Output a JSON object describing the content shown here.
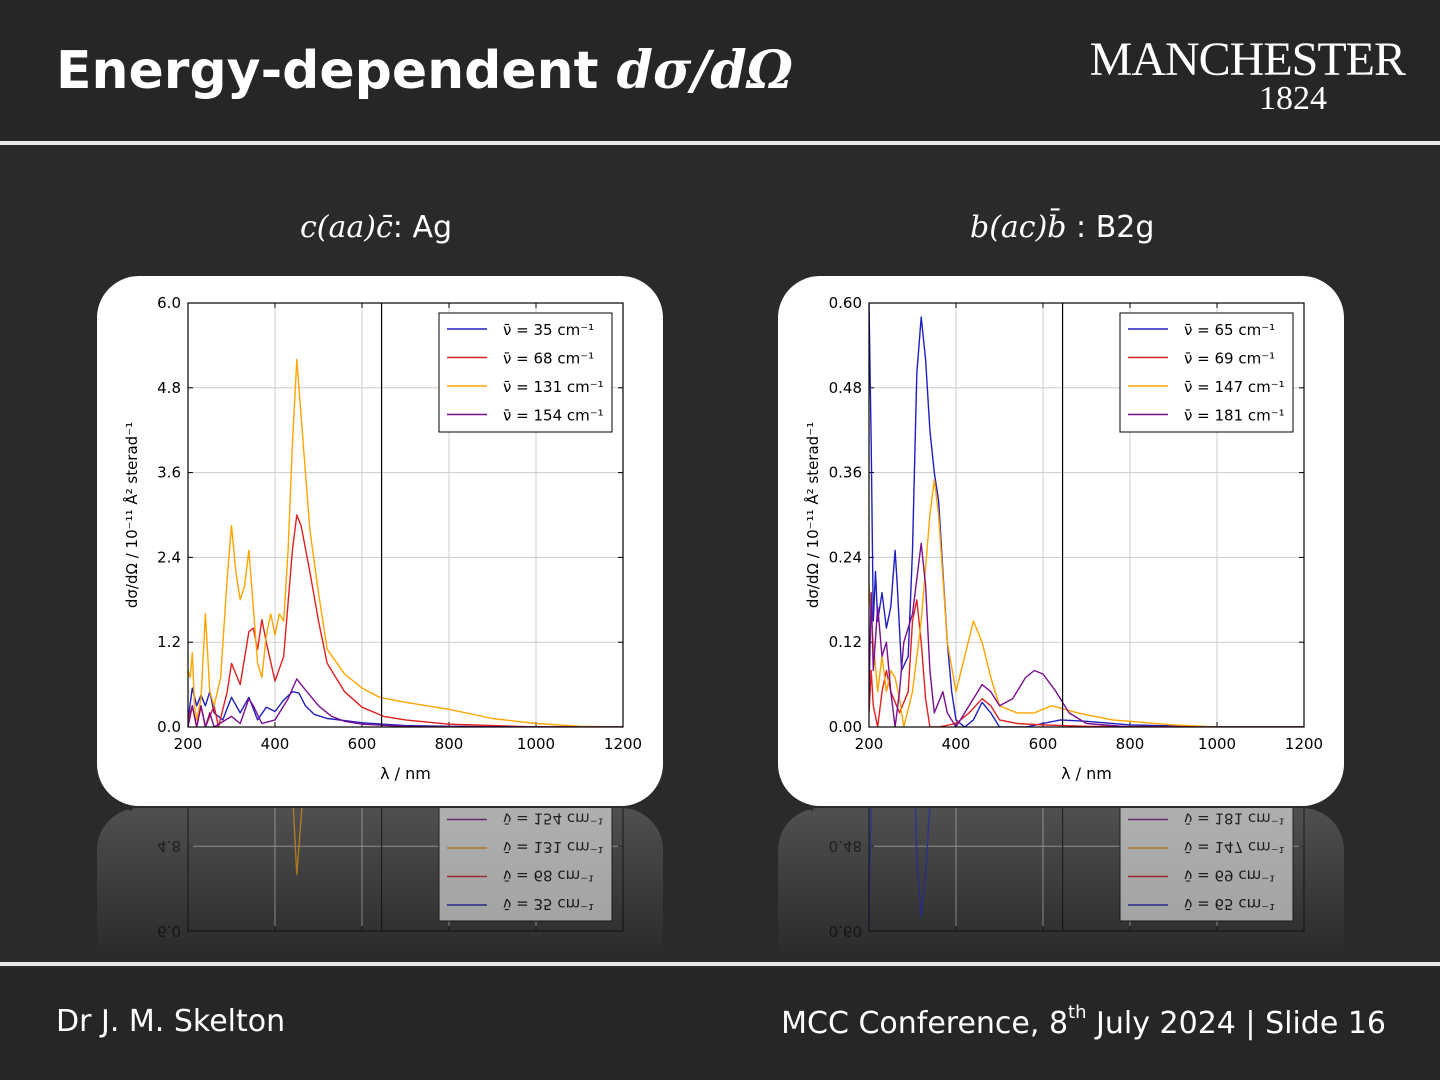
{
  "slide": {
    "title_text": "Energy-dependent ",
    "title_math": "dσ/dΩ",
    "logo_name": "MANCHESTER",
    "logo_year": "1824",
    "author": "Dr J. M. Skelton",
    "footer_main": "MCC Conference, 8",
    "footer_sup": "th",
    "footer_rest": " July 2024 | Slide 16"
  },
  "chart_data": [
    {
      "type": "line",
      "title_math": "c(aa)c̄",
      "title_text": ": Ag",
      "xlabel": "λ / nm",
      "ylabel": "dσ/dΩ / 10⁻¹¹ Å² sterad⁻¹",
      "xlim": [
        200,
        1200
      ],
      "ylim": [
        0,
        6.0
      ],
      "xticks": [
        "200",
        "400",
        "600",
        "800",
        "1000",
        "1200"
      ],
      "yticks": [
        "0.0",
        "1.2",
        "2.4",
        "3.6",
        "4.8",
        "6.0"
      ],
      "vline": 645,
      "grid": true,
      "legend_position": "top-right",
      "series": [
        {
          "name": "ν̄ = 35 cm⁻¹",
          "color": "#1f1fbf",
          "points": [
            [
              200,
              0.1
            ],
            [
              210,
              0.55
            ],
            [
              220,
              0.3
            ],
            [
              230,
              0.45
            ],
            [
              240,
              0.3
            ],
            [
              250,
              0.5
            ],
            [
              260,
              0.2
            ],
            [
              280,
              0.1
            ],
            [
              300,
              0.42
            ],
            [
              320,
              0.2
            ],
            [
              340,
              0.42
            ],
            [
              360,
              0.1
            ],
            [
              380,
              0.28
            ],
            [
              400,
              0.22
            ],
            [
              420,
              0.38
            ],
            [
              440,
              0.5
            ],
            [
              455,
              0.48
            ],
            [
              470,
              0.3
            ],
            [
              490,
              0.18
            ],
            [
              520,
              0.12
            ],
            [
              560,
              0.09
            ],
            [
              600,
              0.06
            ],
            [
              700,
              0.02
            ],
            [
              800,
              0.01
            ],
            [
              1000,
              0.0
            ],
            [
              1200,
              0.0
            ]
          ]
        },
        {
          "name": "ν̄ = 68 cm⁻¹",
          "color": "#e02020",
          "points": [
            [
              200,
              0.1
            ],
            [
              210,
              0.3
            ],
            [
              220,
              0.0
            ],
            [
              230,
              0.3
            ],
            [
              240,
              0.0
            ],
            [
              260,
              0.3
            ],
            [
              270,
              0.0
            ],
            [
              290,
              0.5
            ],
            [
              300,
              0.9
            ],
            [
              320,
              0.6
            ],
            [
              340,
              1.35
            ],
            [
              350,
              1.4
            ],
            [
              360,
              1.1
            ],
            [
              370,
              1.52
            ],
            [
              380,
              1.2
            ],
            [
              400,
              0.65
            ],
            [
              420,
              1.0
            ],
            [
              440,
              2.5
            ],
            [
              450,
              3.0
            ],
            [
              460,
              2.85
            ],
            [
              480,
              2.2
            ],
            [
              500,
              1.5
            ],
            [
              520,
              0.9
            ],
            [
              560,
              0.5
            ],
            [
              600,
              0.28
            ],
            [
              650,
              0.15
            ],
            [
              700,
              0.1
            ],
            [
              800,
              0.04
            ],
            [
              1000,
              0.0
            ],
            [
              1200,
              0.0
            ]
          ]
        },
        {
          "name": "ν̄ = 131 cm⁻¹",
          "color": "#ffa500",
          "points": [
            [
              200,
              0.8
            ],
            [
              205,
              0.7
            ],
            [
              210,
              1.05
            ],
            [
              215,
              0.3
            ],
            [
              220,
              0.1
            ],
            [
              230,
              0.4
            ],
            [
              240,
              1.6
            ],
            [
              250,
              0.5
            ],
            [
              260,
              0.3
            ],
            [
              275,
              0.7
            ],
            [
              290,
              2.1
            ],
            [
              300,
              2.85
            ],
            [
              310,
              2.2
            ],
            [
              320,
              1.8
            ],
            [
              330,
              2.0
            ],
            [
              340,
              2.5
            ],
            [
              350,
              1.7
            ],
            [
              360,
              0.9
            ],
            [
              370,
              0.7
            ],
            [
              380,
              1.3
            ],
            [
              390,
              1.6
            ],
            [
              400,
              1.3
            ],
            [
              410,
              1.6
            ],
            [
              420,
              1.5
            ],
            [
              430,
              2.5
            ],
            [
              440,
              4.0
            ],
            [
              450,
              5.2
            ],
            [
              460,
              4.4
            ],
            [
              480,
              2.8
            ],
            [
              500,
              1.9
            ],
            [
              520,
              1.1
            ],
            [
              560,
              0.75
            ],
            [
              600,
              0.55
            ],
            [
              640,
              0.42
            ],
            [
              700,
              0.35
            ],
            [
              800,
              0.25
            ],
            [
              900,
              0.12
            ],
            [
              1000,
              0.05
            ],
            [
              1100,
              0.01
            ],
            [
              1200,
              0.0
            ]
          ]
        },
        {
          "name": "ν̄ = 154 cm⁻¹",
          "color": "#7b0f8f",
          "points": [
            [
              200,
              0.0
            ],
            [
              210,
              0.3
            ],
            [
              220,
              0.0
            ],
            [
              230,
              0.3
            ],
            [
              240,
              0.0
            ],
            [
              250,
              0.2
            ],
            [
              260,
              0.0
            ],
            [
              300,
              0.15
            ],
            [
              320,
              0.05
            ],
            [
              340,
              0.4
            ],
            [
              350,
              0.3
            ],
            [
              370,
              0.05
            ],
            [
              400,
              0.1
            ],
            [
              430,
              0.4
            ],
            [
              450,
              0.68
            ],
            [
              460,
              0.6
            ],
            [
              480,
              0.45
            ],
            [
              500,
              0.3
            ],
            [
              530,
              0.15
            ],
            [
              560,
              0.08
            ],
            [
              600,
              0.04
            ],
            [
              700,
              0.01
            ],
            [
              1000,
              0.0
            ],
            [
              1200,
              0.0
            ]
          ]
        }
      ]
    },
    {
      "type": "line",
      "title_math": "b(ac)b̄",
      "title_text": " : B2g",
      "xlabel": "λ / nm",
      "ylabel": "dσ/dΩ / 10⁻¹¹ Å² sterad⁻¹",
      "xlim": [
        200,
        1200
      ],
      "ylim": [
        0,
        0.6
      ],
      "xticks": [
        "200",
        "400",
        "600",
        "800",
        "1000",
        "1200"
      ],
      "yticks": [
        "0.00",
        "0.12",
        "0.24",
        "0.36",
        "0.48",
        "0.60"
      ],
      "vline": 645,
      "grid": true,
      "legend_position": "top-right",
      "series": [
        {
          "name": "ν̄ = 65 cm⁻¹",
          "color": "#1f1fbf",
          "points": [
            [
              200,
              0.6
            ],
            [
              205,
              0.4
            ],
            [
              210,
              0.15
            ],
            [
              215,
              0.22
            ],
            [
              220,
              0.15
            ],
            [
              230,
              0.19
            ],
            [
              240,
              0.14
            ],
            [
              250,
              0.17
            ],
            [
              260,
              0.25
            ],
            [
              265,
              0.2
            ],
            [
              275,
              0.08
            ],
            [
              290,
              0.1
            ],
            [
              300,
              0.25
            ],
            [
              310,
              0.5
            ],
            [
              320,
              0.58
            ],
            [
              330,
              0.52
            ],
            [
              340,
              0.42
            ],
            [
              350,
              0.36
            ],
            [
              360,
              0.32
            ],
            [
              370,
              0.22
            ],
            [
              380,
              0.12
            ],
            [
              390,
              0.05
            ],
            [
              400,
              0.01
            ],
            [
              420,
              0.0
            ],
            [
              440,
              0.01
            ],
            [
              460,
              0.035
            ],
            [
              480,
              0.02
            ],
            [
              500,
              0.0
            ],
            [
              560,
              0.0
            ],
            [
              600,
              0.005
            ],
            [
              640,
              0.01
            ],
            [
              700,
              0.008
            ],
            [
              800,
              0.003
            ],
            [
              1000,
              0.0
            ],
            [
              1200,
              0.0
            ]
          ]
        },
        {
          "name": "ν̄ = 69 cm⁻¹",
          "color": "#e02020",
          "points": [
            [
              200,
              0.02
            ],
            [
              205,
              0.08
            ],
            [
              210,
              0.03
            ],
            [
              220,
              0.0
            ],
            [
              230,
              0.05
            ],
            [
              240,
              0.08
            ],
            [
              250,
              0.05
            ],
            [
              270,
              0.02
            ],
            [
              290,
              0.05
            ],
            [
              300,
              0.15
            ],
            [
              310,
              0.18
            ],
            [
              320,
              0.12
            ],
            [
              330,
              0.04
            ],
            [
              340,
              0.0
            ],
            [
              360,
              0.0
            ],
            [
              400,
              0.005
            ],
            [
              430,
              0.02
            ],
            [
              460,
              0.04
            ],
            [
              480,
              0.03
            ],
            [
              500,
              0.01
            ],
            [
              540,
              0.005
            ],
            [
              600,
              0.003
            ],
            [
              700,
              0.001
            ],
            [
              1000,
              0.0
            ],
            [
              1200,
              0.0
            ]
          ]
        },
        {
          "name": "ν̄ = 147 cm⁻¹",
          "color": "#ffa500",
          "points": [
            [
              200,
              0.2
            ],
            [
              210,
              0.12
            ],
            [
              220,
              0.05
            ],
            [
              230,
              0.1
            ],
            [
              240,
              0.05
            ],
            [
              250,
              0.08
            ],
            [
              260,
              0.07
            ],
            [
              270,
              0.04
            ],
            [
              280,
              0.0
            ],
            [
              300,
              0.05
            ],
            [
              320,
              0.15
            ],
            [
              340,
              0.3
            ],
            [
              350,
              0.35
            ],
            [
              360,
              0.3
            ],
            [
              380,
              0.12
            ],
            [
              400,
              0.05
            ],
            [
              420,
              0.1
            ],
            [
              440,
              0.15
            ],
            [
              460,
              0.12
            ],
            [
              480,
              0.07
            ],
            [
              500,
              0.03
            ],
            [
              540,
              0.02
            ],
            [
              580,
              0.02
            ],
            [
              620,
              0.03
            ],
            [
              680,
              0.02
            ],
            [
              760,
              0.01
            ],
            [
              900,
              0.003
            ],
            [
              1000,
              0.0
            ],
            [
              1200,
              0.0
            ]
          ]
        },
        {
          "name": "ν̄ = 181 cm⁻¹",
          "color": "#7b0f8f",
          "points": [
            [
              200,
              0.04
            ],
            [
              205,
              0.19
            ],
            [
              210,
              0.08
            ],
            [
              220,
              0.17
            ],
            [
              230,
              0.1
            ],
            [
              240,
              0.12
            ],
            [
              250,
              0.05
            ],
            [
              260,
              0.0
            ],
            [
              270,
              0.05
            ],
            [
              280,
              0.12
            ],
            [
              300,
              0.16
            ],
            [
              320,
              0.26
            ],
            [
              330,
              0.2
            ],
            [
              340,
              0.08
            ],
            [
              350,
              0.02
            ],
            [
              370,
              0.05
            ],
            [
              380,
              0.02
            ],
            [
              400,
              0.0
            ],
            [
              420,
              0.02
            ],
            [
              440,
              0.04
            ],
            [
              460,
              0.06
            ],
            [
              480,
              0.05
            ],
            [
              500,
              0.03
            ],
            [
              530,
              0.04
            ],
            [
              560,
              0.07
            ],
            [
              580,
              0.08
            ],
            [
              600,
              0.075
            ],
            [
              630,
              0.05
            ],
            [
              660,
              0.02
            ],
            [
              700,
              0.005
            ],
            [
              800,
              0.0
            ],
            [
              1200,
              0.0
            ]
          ]
        }
      ]
    }
  ]
}
